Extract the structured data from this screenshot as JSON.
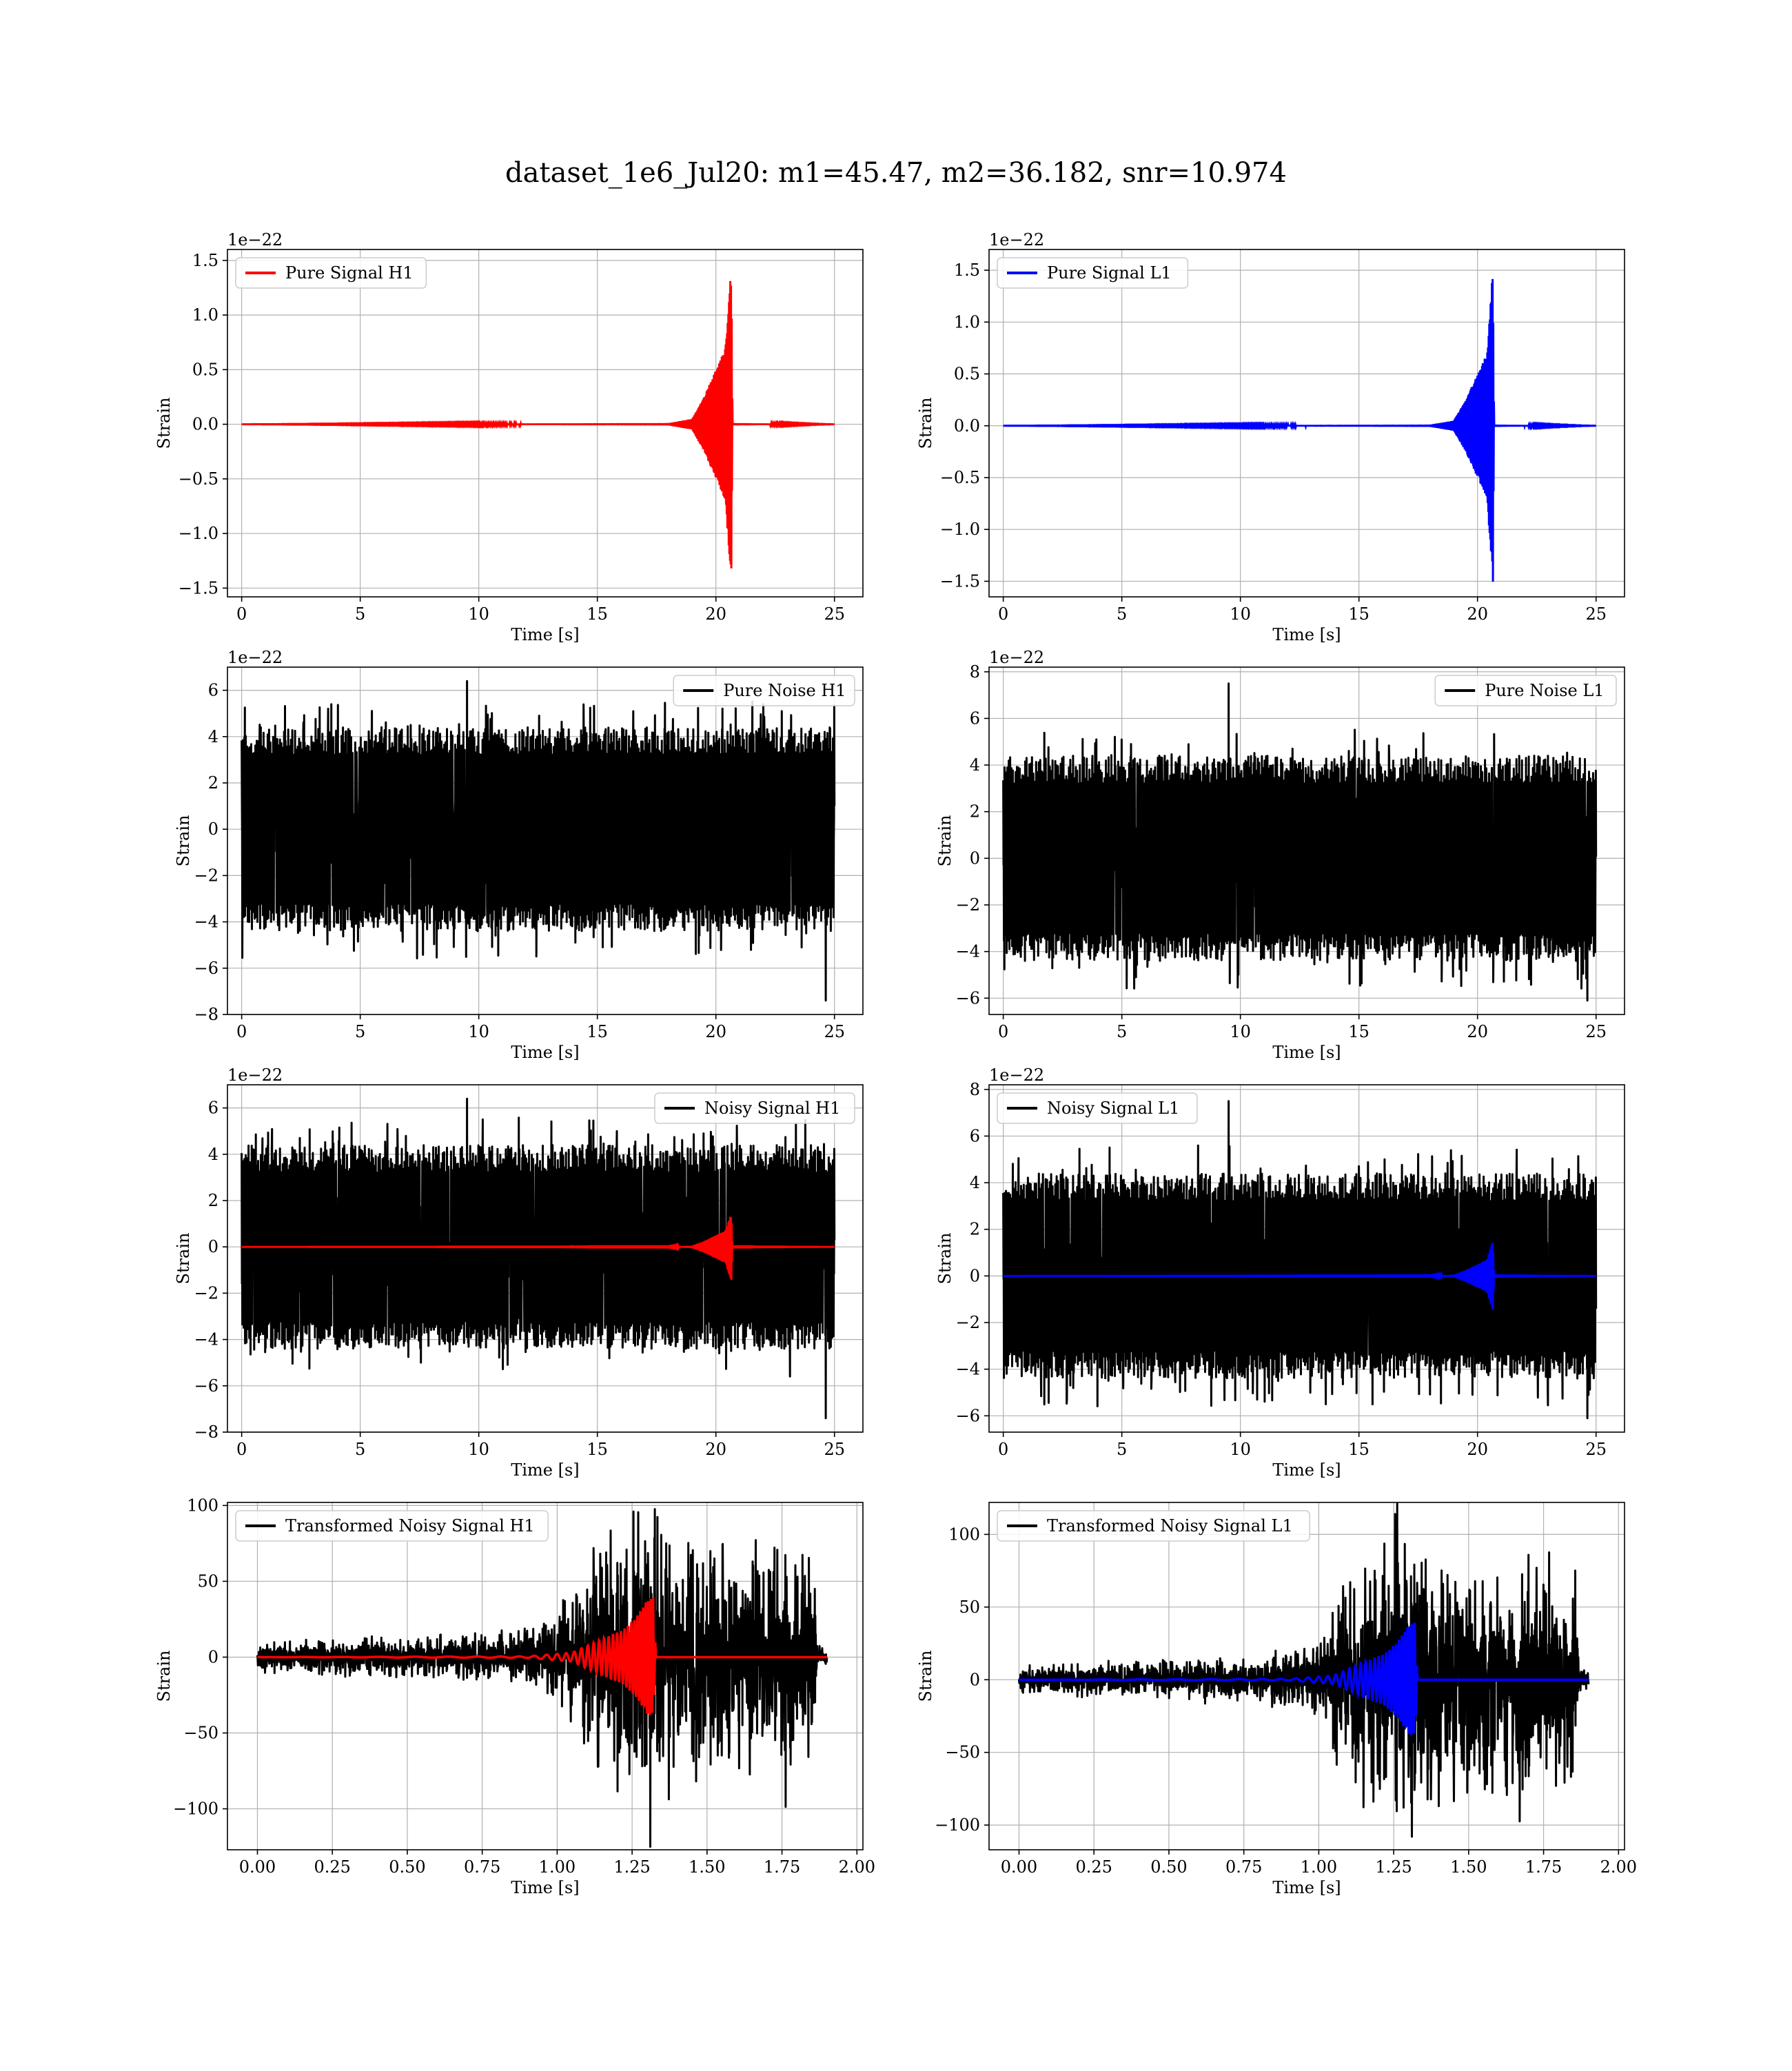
{
  "figure": {
    "title": "dataset_1e6_Jul20: m1=45.47, m2=36.182, snr=10.974"
  },
  "colors": {
    "h1": "#ff0000",
    "l1": "#0000ff",
    "noise": "#000000",
    "grid": "#b0b0b0",
    "axes": "#000000"
  },
  "chart_data": [
    {
      "id": "pure-signal-h1",
      "type": "line",
      "row": 0,
      "col": 0,
      "xlabel": "Time [s]",
      "ylabel": "Strain",
      "offset_text": "1e−22",
      "xlim": [
        -0.6,
        26.2
      ],
      "ylim": [
        -1.58,
        1.6
      ],
      "xticks": [
        0,
        5,
        10,
        15,
        20,
        25
      ],
      "xtick_labels": [
        "0",
        "5",
        "10",
        "15",
        "20",
        "25"
      ],
      "yticks": [
        -1.5,
        -1.0,
        -0.5,
        0.0,
        0.5,
        1.0,
        1.5
      ],
      "ytick_labels": [
        "−1.5",
        "−1.0",
        "−0.5",
        "0.0",
        "0.5",
        "1.0",
        "1.5"
      ],
      "grid": true,
      "legend_placement": "upper left",
      "series": [
        {
          "name": "Pure Signal H1",
          "kind": "chirp",
          "color": "red",
          "envelope": [
            [
              0,
              0
            ],
            [
              18,
              0.01
            ],
            [
              19,
              0.05
            ],
            [
              19.5,
              0.25
            ],
            [
              20.0,
              0.5
            ],
            [
              20.4,
              0.7
            ],
            [
              20.65,
              1.45
            ],
            [
              20.7,
              0.01
            ],
            [
              25,
              0
            ]
          ]
        }
      ]
    },
    {
      "id": "pure-signal-l1",
      "type": "line",
      "row": 0,
      "col": 1,
      "xlabel": "Time [s]",
      "ylabel": "Strain",
      "offset_text": "1e−22",
      "xlim": [
        -0.6,
        26.2
      ],
      "ylim": [
        -1.65,
        1.7
      ],
      "xticks": [
        0,
        5,
        10,
        15,
        20,
        25
      ],
      "xtick_labels": [
        "0",
        "5",
        "10",
        "15",
        "20",
        "25"
      ],
      "yticks": [
        -1.5,
        -1.0,
        -0.5,
        0.0,
        0.5,
        1.0,
        1.5
      ],
      "ytick_labels": [
        "−1.5",
        "−1.0",
        "−0.5",
        "0.0",
        "0.5",
        "1.0",
        "1.5"
      ],
      "grid": true,
      "legend_placement": "upper left",
      "series": [
        {
          "name": "Pure Signal L1",
          "kind": "chirp",
          "color": "blue",
          "envelope": [
            [
              0,
              0
            ],
            [
              18,
              0.01
            ],
            [
              19,
              0.05
            ],
            [
              19.5,
              0.25
            ],
            [
              20.0,
              0.5
            ],
            [
              20.4,
              0.7
            ],
            [
              20.65,
              1.52
            ],
            [
              20.7,
              0.01
            ],
            [
              25,
              0
            ]
          ]
        }
      ]
    },
    {
      "id": "pure-noise-h1",
      "type": "line",
      "row": 1,
      "col": 0,
      "xlabel": "Time [s]",
      "ylabel": "Strain",
      "offset_text": "1e−22",
      "xlim": [
        -0.6,
        26.2
      ],
      "ylim": [
        -8,
        7
      ],
      "xticks": [
        0,
        5,
        10,
        15,
        20,
        25
      ],
      "xtick_labels": [
        "0",
        "5",
        "10",
        "15",
        "20",
        "25"
      ],
      "yticks": [
        -8,
        -6,
        -4,
        -2,
        0,
        2,
        4,
        6
      ],
      "ytick_labels": [
        "−8",
        "−6",
        "−4",
        "−2",
        "0",
        "2",
        "4",
        "6"
      ],
      "grid": true,
      "legend_placement": "upper right",
      "series": [
        {
          "name": "Pure Noise H1",
          "kind": "noise",
          "color": "black",
          "band": [
            -3.8,
            3.8
          ],
          "max": 6.4,
          "min": -7.4
        }
      ]
    },
    {
      "id": "pure-noise-l1",
      "type": "line",
      "row": 1,
      "col": 1,
      "xlabel": "Time [s]",
      "ylabel": "Strain",
      "offset_text": "1e−22",
      "xlim": [
        -0.6,
        26.2
      ],
      "ylim": [
        -6.7,
        8.2
      ],
      "xticks": [
        0,
        5,
        10,
        15,
        20,
        25
      ],
      "xtick_labels": [
        "0",
        "5",
        "10",
        "15",
        "20",
        "25"
      ],
      "yticks": [
        -6,
        -4,
        -2,
        0,
        2,
        4,
        6,
        8
      ],
      "ytick_labels": [
        "−6",
        "−4",
        "−2",
        "0",
        "2",
        "4",
        "6",
        "8"
      ],
      "grid": true,
      "legend_placement": "upper right",
      "series": [
        {
          "name": "Pure Noise L1",
          "kind": "noise",
          "color": "black",
          "band": [
            -3.8,
            3.8
          ],
          "max": 7.5,
          "min": -6.1
        }
      ]
    },
    {
      "id": "noisy-signal-h1",
      "type": "line",
      "row": 2,
      "col": 0,
      "xlabel": "Time [s]",
      "ylabel": "Strain",
      "offset_text": "1e−22",
      "xlim": [
        -0.6,
        26.2
      ],
      "ylim": [
        -8,
        7
      ],
      "xticks": [
        0,
        5,
        10,
        15,
        20,
        25
      ],
      "xtick_labels": [
        "0",
        "5",
        "10",
        "15",
        "20",
        "25"
      ],
      "yticks": [
        -8,
        -6,
        -4,
        -2,
        0,
        2,
        4,
        6
      ],
      "ytick_labels": [
        "−8",
        "−6",
        "−4",
        "−2",
        "0",
        "2",
        "4",
        "6"
      ],
      "grid": true,
      "legend_placement": "upper right",
      "series": [
        {
          "name": "Noisy Signal H1",
          "kind": "noise",
          "color": "black",
          "band": [
            -3.8,
            3.8
          ],
          "max": 6.4,
          "min": -7.4
        },
        {
          "kind": "chirp",
          "color": "red",
          "envelope": [
            [
              0,
              0
            ],
            [
              18,
              0.01
            ],
            [
              19,
              0.05
            ],
            [
              19.5,
              0.25
            ],
            [
              20.0,
              0.5
            ],
            [
              20.4,
              0.7
            ],
            [
              20.65,
              1.45
            ],
            [
              20.7,
              0.01
            ],
            [
              25,
              0
            ]
          ]
        }
      ]
    },
    {
      "id": "noisy-signal-l1",
      "type": "line",
      "row": 2,
      "col": 1,
      "xlabel": "Time [s]",
      "ylabel": "Strain",
      "offset_text": "1e−22",
      "xlim": [
        -0.6,
        26.2
      ],
      "ylim": [
        -6.7,
        8.2
      ],
      "xticks": [
        0,
        5,
        10,
        15,
        20,
        25
      ],
      "xtick_labels": [
        "0",
        "5",
        "10",
        "15",
        "20",
        "25"
      ],
      "yticks": [
        -6,
        -4,
        -2,
        0,
        2,
        4,
        6,
        8
      ],
      "ytick_labels": [
        "−6",
        "−4",
        "−2",
        "0",
        "2",
        "4",
        "6",
        "8"
      ],
      "grid": true,
      "legend_placement": "upper left",
      "series": [
        {
          "name": "Noisy Signal L1",
          "kind": "noise",
          "color": "black",
          "band": [
            -3.8,
            3.8
          ],
          "max": 7.5,
          "min": -6.1
        },
        {
          "kind": "chirp",
          "color": "blue",
          "envelope": [
            [
              0,
              0
            ],
            [
              18,
              0.01
            ],
            [
              19,
              0.05
            ],
            [
              19.5,
              0.25
            ],
            [
              20.0,
              0.5
            ],
            [
              20.4,
              0.7
            ],
            [
              20.65,
              1.52
            ],
            [
              20.7,
              0.01
            ],
            [
              25,
              0
            ]
          ]
        }
      ]
    },
    {
      "id": "transformed-noisy-signal-h1",
      "type": "line",
      "row": 3,
      "col": 0,
      "xlabel": "Time [s]",
      "ylabel": "Strain",
      "offset_text": "",
      "xlim": [
        -0.1,
        2.02
      ],
      "ylim": [
        -127,
        102
      ],
      "xticks": [
        0,
        0.25,
        0.5,
        0.75,
        1.0,
        1.25,
        1.5,
        1.75,
        2.0
      ],
      "xtick_labels": [
        "0.00",
        "0.25",
        "0.50",
        "0.75",
        "1.00",
        "1.25",
        "1.50",
        "1.75",
        "2.00"
      ],
      "yticks": [
        -100,
        -50,
        0,
        50,
        100
      ],
      "ytick_labels": [
        "−100",
        "−50",
        "0",
        "50",
        "100"
      ],
      "grid": true,
      "legend_placement": "upper left",
      "series": [
        {
          "name": "Transformed Noisy Signal H1",
          "kind": "whitened",
          "color": "black",
          "envelope": [
            [
              0,
              8
            ],
            [
              0.8,
              12
            ],
            [
              1.0,
              20
            ],
            [
              1.1,
              55
            ],
            [
              1.2,
              70
            ],
            [
              1.3,
              80
            ],
            [
              1.5,
              60
            ],
            [
              1.86,
              60
            ],
            [
              1.87,
              6
            ],
            [
              1.9,
              5
            ]
          ],
          "max": 96,
          "min": -125
        },
        {
          "kind": "whitened-chirp",
          "color": "red",
          "envelope": [
            [
              0,
              0
            ],
            [
              0.9,
              0.5
            ],
            [
              1.05,
              3
            ],
            [
              1.15,
              12
            ],
            [
              1.22,
              18
            ],
            [
              1.27,
              28
            ],
            [
              1.3,
              38
            ],
            [
              1.32,
              40
            ],
            [
              1.33,
              0
            ],
            [
              1.9,
              0
            ]
          ]
        }
      ]
    },
    {
      "id": "transformed-noisy-signal-l1",
      "type": "line",
      "row": 3,
      "col": 1,
      "xlabel": "Time [s]",
      "ylabel": "Strain",
      "offset_text": "",
      "xlim": [
        -0.1,
        2.02
      ],
      "ylim": [
        -117,
        122
      ],
      "xticks": [
        0,
        0.25,
        0.5,
        0.75,
        1.0,
        1.25,
        1.5,
        1.75,
        2.0
      ],
      "xtick_labels": [
        "0.00",
        "0.25",
        "0.50",
        "0.75",
        "1.00",
        "1.25",
        "1.50",
        "1.75",
        "2.00"
      ],
      "yticks": [
        -100,
        -50,
        0,
        50,
        100
      ],
      "ytick_labels": [
        "−100",
        "−50",
        "0",
        "50",
        "100"
      ],
      "grid": true,
      "legend_placement": "upper left",
      "series": [
        {
          "name": "Transformed Noisy Signal L1",
          "kind": "whitened",
          "color": "black",
          "envelope": [
            [
              0,
              8
            ],
            [
              0.8,
              12
            ],
            [
              1.0,
              20
            ],
            [
              1.1,
              55
            ],
            [
              1.2,
              70
            ],
            [
              1.3,
              80
            ],
            [
              1.5,
              60
            ],
            [
              1.86,
              60
            ],
            [
              1.87,
              6
            ],
            [
              1.9,
              5
            ]
          ],
          "max": 114,
          "min": -108
        },
        {
          "kind": "whitened-chirp",
          "color": "blue",
          "envelope": [
            [
              0,
              0
            ],
            [
              0.9,
              0.5
            ],
            [
              1.05,
              3
            ],
            [
              1.15,
              12
            ],
            [
              1.22,
              18
            ],
            [
              1.27,
              28
            ],
            [
              1.3,
              38
            ],
            [
              1.32,
              40
            ],
            [
              1.33,
              0
            ],
            [
              1.9,
              0
            ]
          ]
        }
      ]
    }
  ]
}
